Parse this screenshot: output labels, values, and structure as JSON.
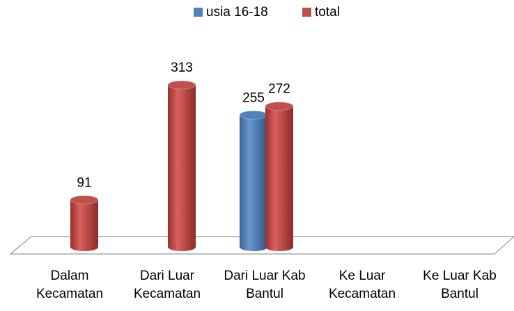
{
  "chart_data": {
    "type": "bar3d",
    "categories": [
      "Dalam Kecamatan",
      "Dari Luar Kecamatan",
      "Dari Luar Kab Bantul",
      "Ke Luar Kecamatan",
      "Ke Luar Kab Bantul"
    ],
    "series": [
      {
        "name": "usia 16-18",
        "color": "#4f81bd",
        "values": [
          null,
          null,
          255,
          null,
          null
        ]
      },
      {
        "name": "total",
        "color": "#c0504d",
        "values": [
          91,
          313,
          272,
          null,
          null
        ]
      }
    ],
    "legend": "top"
  }
}
